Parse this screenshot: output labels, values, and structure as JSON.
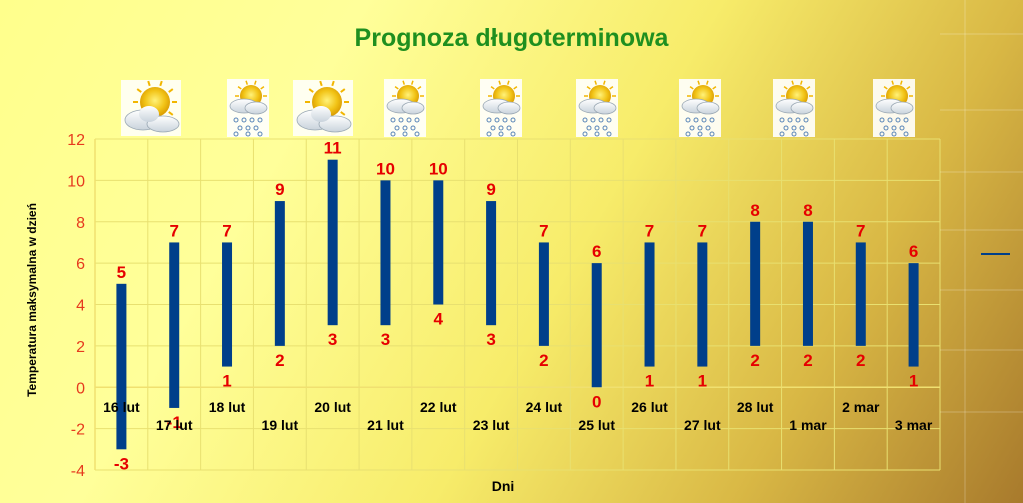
{
  "chart_data": {
    "type": "bar",
    "title": "Prognoza długoterminowa",
    "xlabel": "Dni",
    "ylabel": "Temperatura maksymalna w dzień",
    "ylim": [
      -4,
      12
    ],
    "yticks": [
      "-4",
      "-2",
      "0",
      "2",
      "4",
      "6",
      "8",
      "10",
      "12"
    ],
    "ytick_values": [
      -4,
      -2,
      0,
      2,
      4,
      6,
      8,
      10,
      12
    ],
    "grid": true,
    "bar_color": "#003f8a",
    "label_color": "#e60000",
    "legend_placement": "right",
    "categories": [
      "16 lut",
      "17 lut",
      "18 lut",
      "19 lut",
      "20 lut",
      "21 lut",
      "22 lut",
      "23 lut",
      "24 lut",
      "25 lut",
      "26 lut",
      "27 lut",
      "28 lut",
      "1 mar",
      "2 mar",
      "3 mar"
    ],
    "high": [
      5,
      7,
      7,
      9,
      11,
      10,
      10,
      9,
      7,
      6,
      7,
      7,
      8,
      8,
      7,
      6
    ],
    "low": [
      -3,
      -1,
      1,
      2,
      3,
      3,
      4,
      3,
      2,
      0,
      1,
      1,
      2,
      2,
      2,
      1
    ],
    "high_labels": [
      "5",
      "7",
      "7",
      "9",
      "11",
      "10",
      "10",
      "9",
      "7",
      "6",
      "7",
      "7",
      "8",
      "8",
      "7",
      "6"
    ],
    "low_labels": [
      "-3",
      "-1",
      "1",
      "2",
      "3",
      "3",
      "4",
      "3",
      "2",
      "0",
      "1",
      "1",
      "2",
      "2",
      "2",
      "1"
    ],
    "weather_icons": [
      "sun-cloud-icon",
      "sun-cloud-snow-icon",
      "sun-cloud-icon",
      "sun-cloud-snow-icon",
      "sun-cloud-snow-icon",
      "sun-cloud-snow-icon",
      "sun-cloud-snow-icon",
      "sun-cloud-snow-icon"
    ]
  }
}
